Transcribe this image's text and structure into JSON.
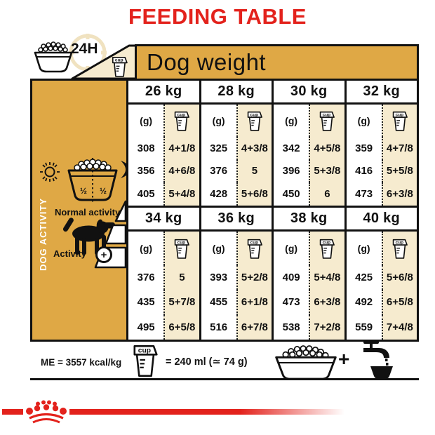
{
  "title": "FEEDING TABLE",
  "colors": {
    "gold": "#DFA845",
    "cream": "#F6EBCF",
    "red": "#E3221C"
  },
  "top": {
    "hours_label": "24H"
  },
  "table": {
    "header": "Dog weight",
    "unit_label": "(g)",
    "cup_label": "cup",
    "sections": [
      {
        "columns": [
          {
            "weight": "26 kg",
            "rows": [
              [
                "308",
                "4+1/8"
              ],
              [
                "356",
                "4+6/8"
              ],
              [
                "405",
                "5+4/8"
              ]
            ]
          },
          {
            "weight": "28 kg",
            "rows": [
              [
                "325",
                "4+3/8"
              ],
              [
                "376",
                "5"
              ],
              [
                "428",
                "5+6/8"
              ]
            ]
          },
          {
            "weight": "30 kg",
            "rows": [
              [
                "342",
                "4+5/8"
              ],
              [
                "396",
                "5+3/8"
              ],
              [
                "450",
                "6"
              ]
            ]
          },
          {
            "weight": "32 kg",
            "rows": [
              [
                "359",
                "4+7/8"
              ],
              [
                "416",
                "5+5/8"
              ],
              [
                "473",
                "6+3/8"
              ]
            ]
          }
        ]
      },
      {
        "columns": [
          {
            "weight": "34 kg",
            "rows": [
              [
                "376",
                "5"
              ],
              [
                "435",
                "5+7/8"
              ],
              [
                "495",
                "6+5/8"
              ]
            ]
          },
          {
            "weight": "36 kg",
            "rows": [
              [
                "393",
                "5+2/8"
              ],
              [
                "455",
                "6+1/8"
              ],
              [
                "516",
                "6+7/8"
              ]
            ]
          },
          {
            "weight": "38 kg",
            "rows": [
              [
                "409",
                "5+4/8"
              ],
              [
                "473",
                "6+3/8"
              ],
              [
                "538",
                "7+2/8"
              ]
            ]
          },
          {
            "weight": "40 kg",
            "rows": [
              [
                "425",
                "5+6/8"
              ],
              [
                "492",
                "6+5/8"
              ],
              [
                "559",
                "7+4/8"
              ]
            ]
          }
        ]
      }
    ]
  },
  "sidebar": {
    "vertical_label": "DOG ACTIVITY",
    "bowl_half_left": "½",
    "bowl_half_right": "½",
    "normal_activity_label": "Normal activity",
    "activity_label": "Activity",
    "activity_plus": "+"
  },
  "footer": {
    "me_label": "ME = 3557 kcal/kg",
    "cup_equivalence": "= 240 ml (≃ 74 g)",
    "plus_sign": "+"
  }
}
